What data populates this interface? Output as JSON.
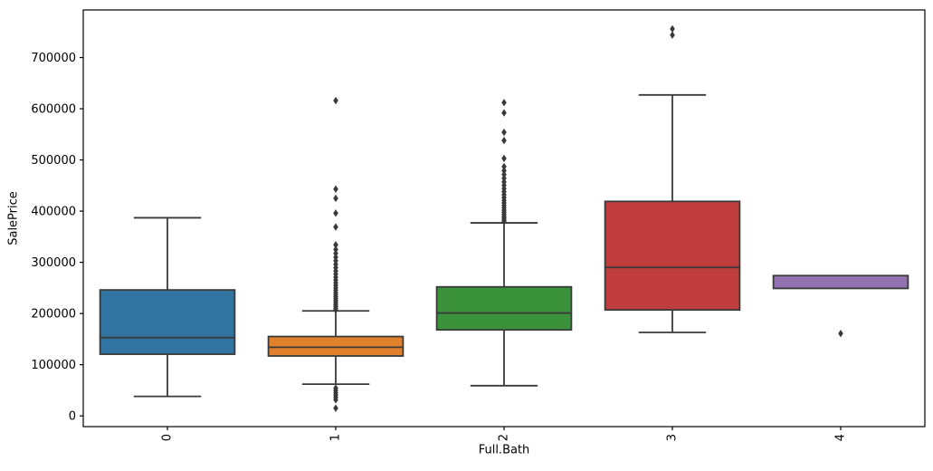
{
  "figure": {
    "title": "",
    "xlabel": "Full.Bath",
    "ylabel": "SalePrice"
  },
  "chart_data": {
    "type": "boxplot",
    "title": "",
    "xlabel": "Full.Bath",
    "ylabel": "SalePrice",
    "categories": [
      "0",
      "1",
      "2",
      "3",
      "4"
    ],
    "yticks": [
      0,
      100000,
      200000,
      300000,
      400000,
      500000,
      600000,
      700000
    ],
    "ylim": [
      -21000,
      793000
    ],
    "grid": false,
    "legend": null,
    "marker": "diamond",
    "line_color": "#3a3a3a",
    "spine_color": "#000000",
    "groups": [
      {
        "category": "0",
        "color": "#3274a1",
        "whislo": 38000,
        "q1": 120500,
        "med": 153000,
        "q3": 246000,
        "whishi": 387000,
        "fliers": []
      },
      {
        "category": "1",
        "color": "#e1812c",
        "whislo": 62000,
        "q1": 117000,
        "med": 134000,
        "q3": 155000,
        "whishi": 205000,
        "fliers": [
          15000,
          31500,
          36000,
          40500,
          45000,
          49500,
          54000,
          207000,
          210000,
          213500,
          217000,
          221000,
          225000,
          229000,
          233000,
          237000,
          241000,
          245500,
          250000,
          255000,
          260000,
          265500,
          271000,
          277000,
          283000,
          289500,
          296000,
          303000,
          310000,
          317500,
          325000,
          334000,
          369000,
          396000,
          425000,
          443000,
          616000
        ]
      },
      {
        "category": "2",
        "color": "#3a923a",
        "whislo": 59000,
        "q1": 168000,
        "med": 201000,
        "q3": 252000,
        "whishi": 377000,
        "fliers": [
          380000,
          383000,
          386500,
          390000,
          394000,
          398000,
          402000,
          406500,
          411000,
          416000,
          421000,
          426500,
          432000,
          438000,
          444000,
          450500,
          457000,
          464000,
          471500,
          479000,
          487000,
          503000,
          538000,
          554000,
          592000,
          612000
        ]
      },
      {
        "category": "3",
        "color": "#c03d3e",
        "whislo": 163000,
        "q1": 207000,
        "med": 290000,
        "q3": 419000,
        "whishi": 627000,
        "fliers": [
          744000,
          756000
        ]
      },
      {
        "category": "4",
        "color": "#9372b2",
        "whislo": 249000,
        "q1": 249000,
        "med": null,
        "q3": 274000,
        "whishi": 274000,
        "fliers": [
          161000
        ]
      }
    ]
  }
}
